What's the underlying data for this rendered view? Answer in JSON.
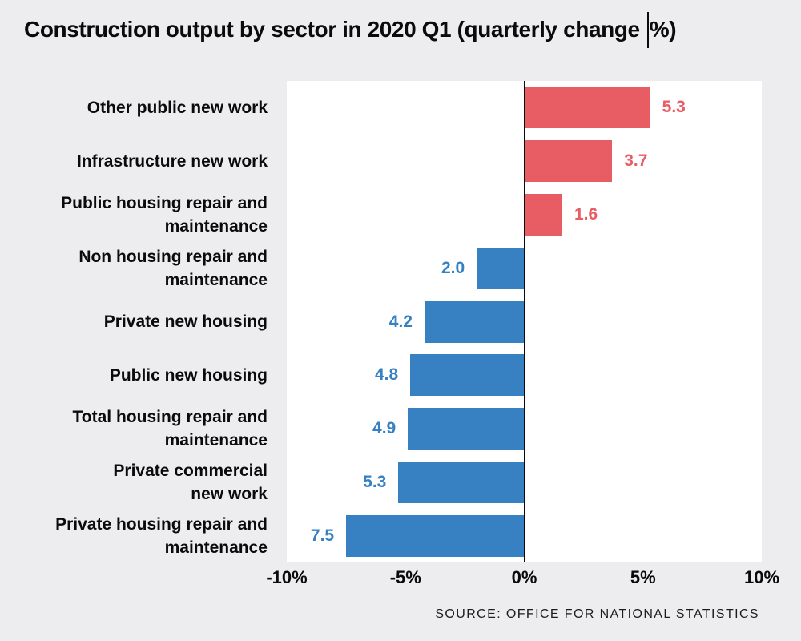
{
  "title": {
    "text": "Construction output by sector in 2020 Q1 (quarterly change %)",
    "part1": "Construction output by sector in 2020 Q1 (quarterly change",
    "part2": "%)"
  },
  "source": "SOURCE: OFFICE FOR NATIONAL STATISTICS",
  "chart_data": {
    "type": "bar",
    "orientation": "horizontal",
    "title": "Construction output by sector in 2020 Q1 (quarterly change %)",
    "categories": [
      "Other public new work",
      "Infrastructure new work",
      "Public housing repair and maintenance",
      "Non housing repair and maintenance",
      "Private new housing",
      "Public new housing",
      "Total housing repair and maintenance",
      "Private commercial new work",
      "Private housing repair and maintenance"
    ],
    "display_labels": [
      "Other public new work",
      "Infrastructure new work",
      "Public housing repair and\nmaintenance",
      "Non housing repair and\nmaintenance",
      "Private new housing",
      "Public new housing",
      "Total housing repair and\nmaintenance",
      "Private commercial\nnew work",
      "Private housing repair and\nmaintenance"
    ],
    "values": [
      5.3,
      3.7,
      1.6,
      -2.0,
      -4.2,
      -4.8,
      -4.9,
      -5.3,
      -7.5
    ],
    "value_labels": [
      "5.3",
      "3.7",
      "1.6",
      "2.0",
      "4.2",
      "4.8",
      "4.9",
      "5.3",
      "7.5"
    ],
    "x_ticks": [
      "-10%",
      "-5%",
      "0%",
      "5%",
      "10%"
    ],
    "x_tick_positions_pct": [
      0,
      25,
      50,
      75,
      100
    ],
    "xlim": [
      -10,
      10
    ],
    "positive_color": "#e85d64",
    "negative_color": "#3781c3",
    "axis_line_color": "#0b0b0b",
    "background_color": "#ededef",
    "plot_background_color": "#ffffff",
    "grid": false,
    "legend": false
  }
}
